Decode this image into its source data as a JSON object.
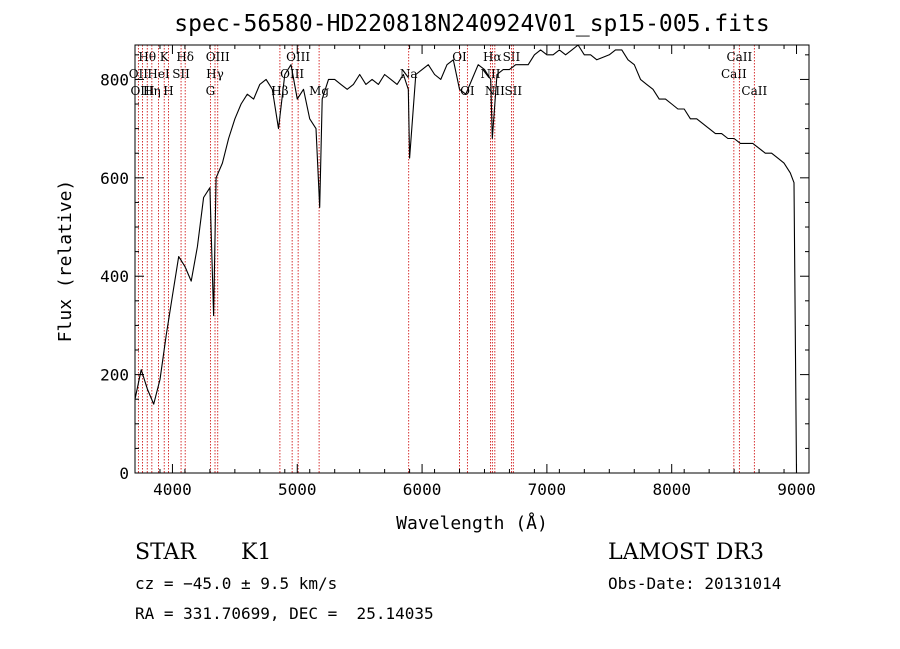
{
  "chart_data": {
    "type": "line",
    "title": "spec-56580-HD220818N240924V01_sp15-005.fits",
    "xlabel": "Wavelength (Å)",
    "ylabel": "Flux (relative)",
    "xlim": [
      3700,
      9100
    ],
    "ylim": [
      0,
      870
    ],
    "xticks": [
      4000,
      5000,
      6000,
      7000,
      8000,
      9000
    ],
    "yticks": [
      0,
      200,
      400,
      600,
      800
    ],
    "series": [
      {
        "name": "spectrum",
        "x": [
          3700,
          3750,
          3800,
          3850,
          3900,
          3950,
          4000,
          4050,
          4100,
          4150,
          4200,
          4250,
          4300,
          4330,
          4350,
          4400,
          4450,
          4500,
          4550,
          4600,
          4650,
          4700,
          4750,
          4800,
          4850,
          4900,
          4950,
          5000,
          5050,
          5100,
          5150,
          5180,
          5200,
          5250,
          5300,
          5350,
          5400,
          5450,
          5500,
          5550,
          5600,
          5650,
          5700,
          5750,
          5800,
          5850,
          5890,
          5900,
          5950,
          6000,
          6050,
          6100,
          6150,
          6200,
          6250,
          6300,
          6350,
          6400,
          6450,
          6500,
          6550,
          6563,
          6600,
          6650,
          6700,
          6750,
          6800,
          6850,
          6900,
          6950,
          7000,
          7050,
          7100,
          7150,
          7200,
          7250,
          7300,
          7350,
          7400,
          7450,
          7500,
          7550,
          7600,
          7650,
          7700,
          7750,
          7800,
          7850,
          7900,
          7950,
          8000,
          8050,
          8100,
          8150,
          8200,
          8250,
          8300,
          8350,
          8400,
          8450,
          8500,
          8550,
          8600,
          8650,
          8700,
          8750,
          8800,
          8850,
          8900,
          8950,
          8980,
          9000
        ],
        "values": [
          150,
          210,
          170,
          140,
          190,
          280,
          360,
          440,
          420,
          390,
          460,
          560,
          580,
          320,
          600,
          630,
          680,
          720,
          750,
          770,
          760,
          790,
          800,
          780,
          700,
          810,
          830,
          760,
          780,
          720,
          700,
          540,
          760,
          800,
          800,
          790,
          780,
          790,
          810,
          790,
          800,
          790,
          810,
          800,
          790,
          810,
          780,
          640,
          810,
          820,
          830,
          810,
          800,
          830,
          840,
          780,
          770,
          800,
          830,
          820,
          800,
          680,
          810,
          820,
          820,
          830,
          830,
          830,
          850,
          860,
          850,
          850,
          860,
          850,
          860,
          870,
          850,
          850,
          840,
          845,
          850,
          860,
          860,
          840,
          830,
          800,
          790,
          780,
          760,
          760,
          750,
          740,
          740,
          720,
          720,
          710,
          700,
          690,
          690,
          680,
          680,
          670,
          670,
          670,
          660,
          650,
          650,
          640,
          630,
          610,
          590,
          0
        ]
      }
    ],
    "spectral_lines": [
      {
        "label": "Hθ",
        "x": 3798,
        "row": 0
      },
      {
        "label": "OII",
        "x": 3727,
        "row": 1
      },
      {
        "label": "OIII",
        "x": 3760,
        "row": 2
      },
      {
        "label": "Hη",
        "x": 3835,
        "row": 2
      },
      {
        "label": "HeI",
        "x": 3889,
        "row": 1
      },
      {
        "label": "K",
        "x": 3934,
        "row": 0
      },
      {
        "label": "H",
        "x": 3968,
        "row": 2
      },
      {
        "label": "SII",
        "x": 4069,
        "row": 1
      },
      {
        "label": "Hδ",
        "x": 4102,
        "row": 0
      },
      {
        "label": "G",
        "x": 4304,
        "row": 2
      },
      {
        "label": "Hγ",
        "x": 4341,
        "row": 1
      },
      {
        "label": "OIII",
        "x": 4363,
        "row": 0
      },
      {
        "label": "Hβ",
        "x": 4861,
        "row": 2
      },
      {
        "label": "OIII",
        "x": 4959,
        "row": 1
      },
      {
        "label": "OIII",
        "x": 5007,
        "row": 0
      },
      {
        "label": "Mg",
        "x": 5175,
        "row": 2
      },
      {
        "label": "Na",
        "x": 5893,
        "row": 1
      },
      {
        "label": "OI",
        "x": 6300,
        "row": 0
      },
      {
        "label": "OI",
        "x": 6363,
        "row": 2
      },
      {
        "label": "NII",
        "x": 6548,
        "row": 1
      },
      {
        "label": "Hα",
        "x": 6563,
        "row": 0
      },
      {
        "label": "NII",
        "x": 6583,
        "row": 2
      },
      {
        "label": "SII",
        "x": 6716,
        "row": 0
      },
      {
        "label": "SII",
        "x": 6731,
        "row": 2
      },
      {
        "label": "CaII",
        "x": 8498,
        "row": 1
      },
      {
        "label": "CaII",
        "x": 8542,
        "row": 0
      },
      {
        "label": "CaII",
        "x": 8662,
        "row": 2
      }
    ]
  },
  "info": {
    "object_class": "STAR",
    "subclass": "K1",
    "survey": "LAMOST DR3",
    "redshift_line": "cz = −45.0 ± 9.5 km/s",
    "obs_date": "Obs-Date: 20131014",
    "coords": "RA = 331.70699, DEC =  25.14035"
  }
}
